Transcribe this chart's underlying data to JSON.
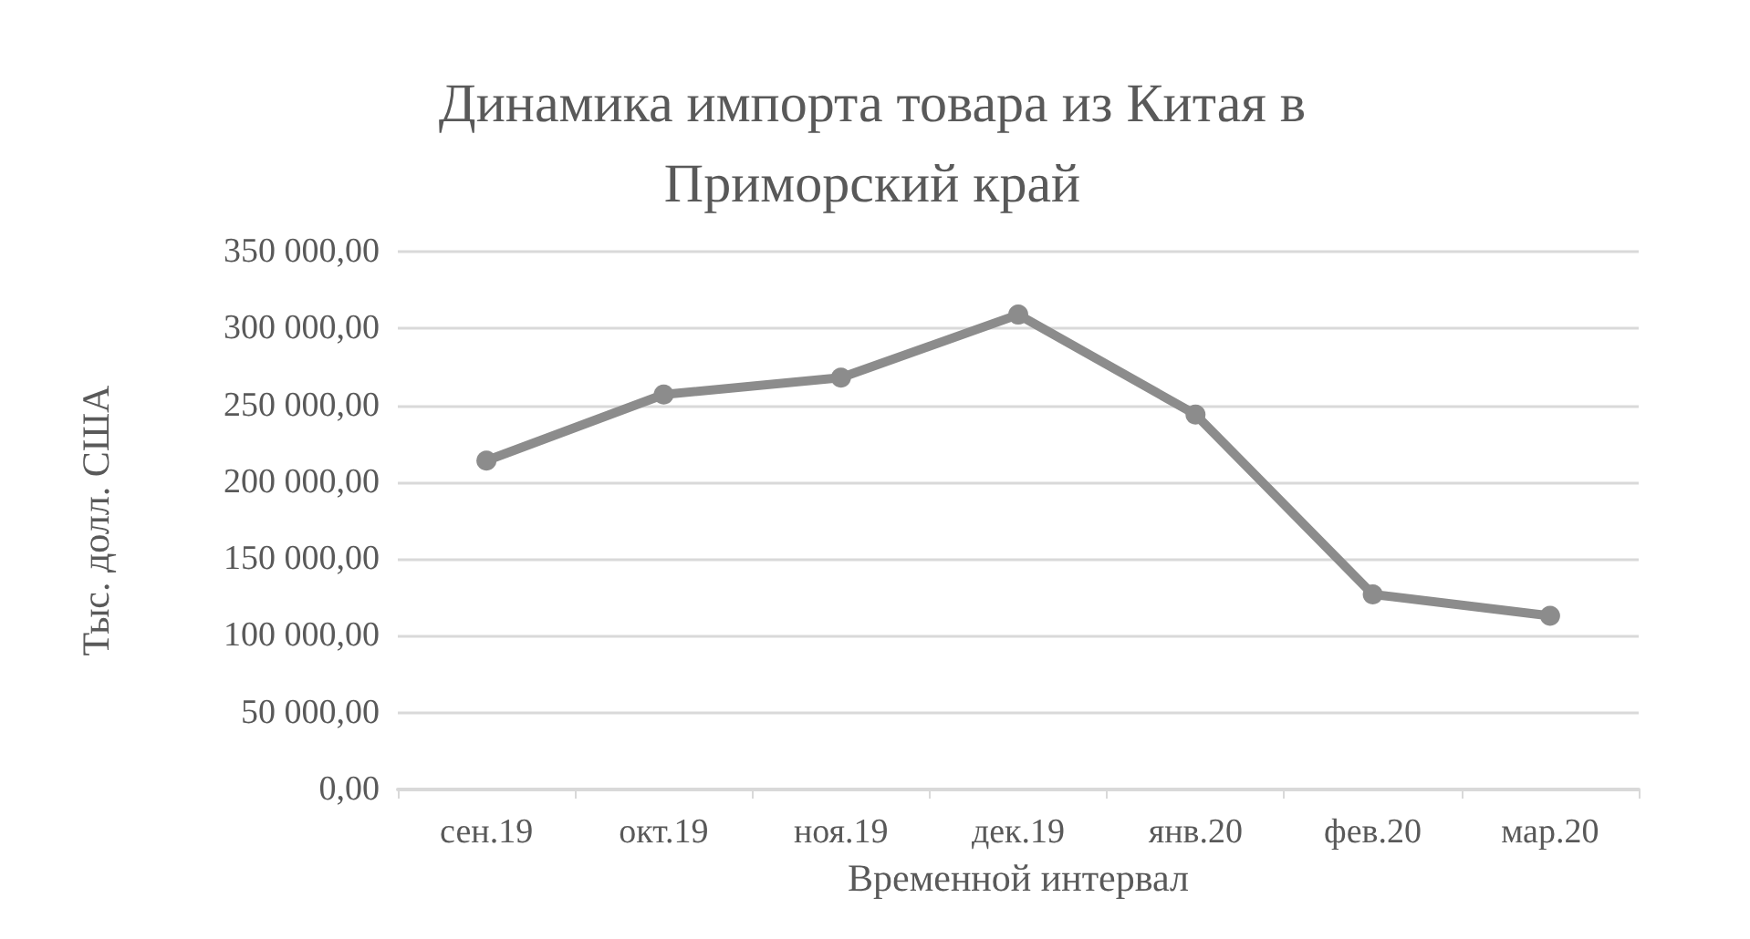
{
  "chart_data": {
    "type": "line",
    "title": "Динамика импорта товара из Китая в\nПриморский край",
    "xlabel": "Временной интервал",
    "ylabel": "Тыс. долл. США",
    "categories": [
      "сен.19",
      "окт.19",
      "ноя.19",
      "дек.19",
      "янв.20",
      "фев.20",
      "мар.20"
    ],
    "series": [
      {
        "color": "#8c8c8c",
        "values": [
          214000,
          257000,
          268000,
          309000,
          244000,
          127000,
          113000
        ]
      }
    ],
    "ylim": [
      0,
      350000
    ],
    "yticks": [
      {
        "value": 0,
        "label": "0,00"
      },
      {
        "value": 50000,
        "label": "50 000,00"
      },
      {
        "value": 100000,
        "label": "100 000,00"
      },
      {
        "value": 150000,
        "label": "150 000,00"
      },
      {
        "value": 200000,
        "label": "200 000,00"
      },
      {
        "value": 250000,
        "label": "250 000,00"
      },
      {
        "value": 300000,
        "label": "300 000,00"
      },
      {
        "value": 350000,
        "label": "350 000,00"
      }
    ],
    "grid": "y",
    "marker": "circle",
    "line_style": "solid"
  }
}
